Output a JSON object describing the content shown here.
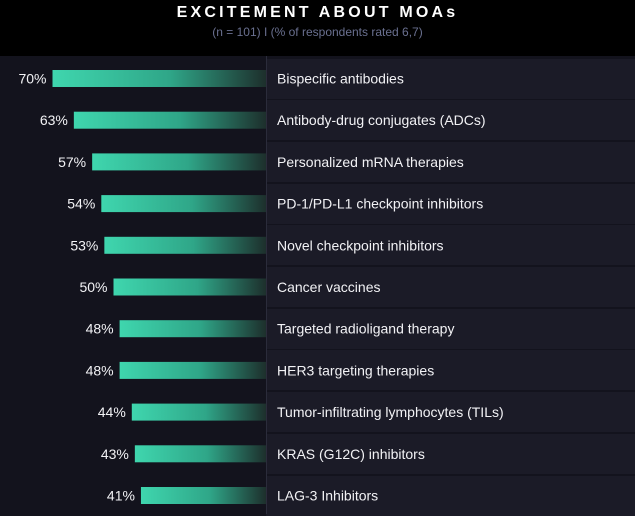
{
  "header": {
    "title": "EXCITEMENT ABOUT MOAs",
    "subtitle": "(n = 101) I (% of respondents rated 6,7)"
  },
  "colors": {
    "background": "#13131d",
    "header_background": "#000000",
    "bar_start": "#3fd6ae",
    "bar_end": "#1d2f2c",
    "text": "#f2f2f5",
    "subtitle": "#6a7090"
  },
  "chart_data": {
    "type": "bar",
    "orientation": "horizontal",
    "title": "EXCITEMENT ABOUT MOAs",
    "subtitle": "(n = 101) I (% of respondents rated 6,7)",
    "value_suffix": "%",
    "categories": [
      "Bispecific antibodies",
      "Antibody-drug conjugates (ADCs)",
      "Personalized mRNA therapies",
      "PD-1/PD-L1 checkpoint inhibitors",
      "Novel checkpoint inhibitors",
      "Cancer vaccines",
      "Targeted radioligand therapy",
      "HER3 targeting therapies",
      "Tumor-infiltrating lymphocytes (TILs)",
      "KRAS (G12C) inhibitors",
      "LAG-3 Inhibitors"
    ],
    "values": [
      70,
      63,
      57,
      54,
      53,
      50,
      48,
      48,
      44,
      43,
      41
    ],
    "value_labels": [
      "70%",
      "63%",
      "57%",
      "54%",
      "53%",
      "50%",
      "48%",
      "48%",
      "44%",
      "43%",
      "41%"
    ],
    "grid": false,
    "legend": "none"
  }
}
